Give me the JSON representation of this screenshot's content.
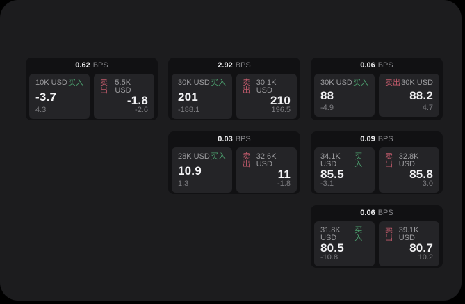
{
  "colors": {
    "page_bg": "#000000",
    "panel_bg": "#1c1c1e",
    "card_bg": "#111113",
    "tile_bg": "#242427",
    "text_primary": "#f2f2f4",
    "text_secondary": "#9c9c9f",
    "text_muted": "#7d7d81",
    "buy_green": "#4c9f6e",
    "sell_red": "#c05a6b"
  },
  "labels": {
    "bps": "BPS",
    "buy": "买入",
    "sell": "卖出"
  },
  "cards": [
    {
      "row": 1,
      "col": 1,
      "bps": "0.62",
      "buy": {
        "size": "10K USD",
        "value": "-3.7",
        "delta": "4.3"
      },
      "sell": {
        "size": "5.5K USD",
        "value": "-1.8",
        "delta": "-2.6"
      }
    },
    {
      "row": 1,
      "col": 2,
      "bps": "2.92",
      "buy": {
        "size": "30K USD",
        "value": "201",
        "delta": "-188.1"
      },
      "sell": {
        "size": "30.1K USD",
        "value": "210",
        "delta": "196.5"
      }
    },
    {
      "row": 1,
      "col": 3,
      "bps": "0.06",
      "buy": {
        "size": "30K USD",
        "value": "88",
        "delta": "-4.9"
      },
      "sell": {
        "size": "30K USD",
        "value": "88.2",
        "delta": "4.7"
      }
    },
    {
      "row": 2,
      "col": 2,
      "bps": "0.03",
      "buy": {
        "size": "28K USD",
        "value": "10.9",
        "delta": "1.3"
      },
      "sell": {
        "size": "32.6K USD",
        "value": "11",
        "delta": "-1.8"
      }
    },
    {
      "row": 2,
      "col": 3,
      "bps": "0.09",
      "buy": {
        "size": "34.1K USD",
        "value": "85.5",
        "delta": "-3.1"
      },
      "sell": {
        "size": "32.8K USD",
        "value": "85.8",
        "delta": "3.0"
      }
    },
    {
      "row": 3,
      "col": 3,
      "bps": "0.06",
      "buy": {
        "size": "31.8K USD",
        "value": "80.5",
        "delta": "-10.8"
      },
      "sell": {
        "size": "39.1K USD",
        "value": "80.7",
        "delta": "10.2"
      }
    }
  ]
}
